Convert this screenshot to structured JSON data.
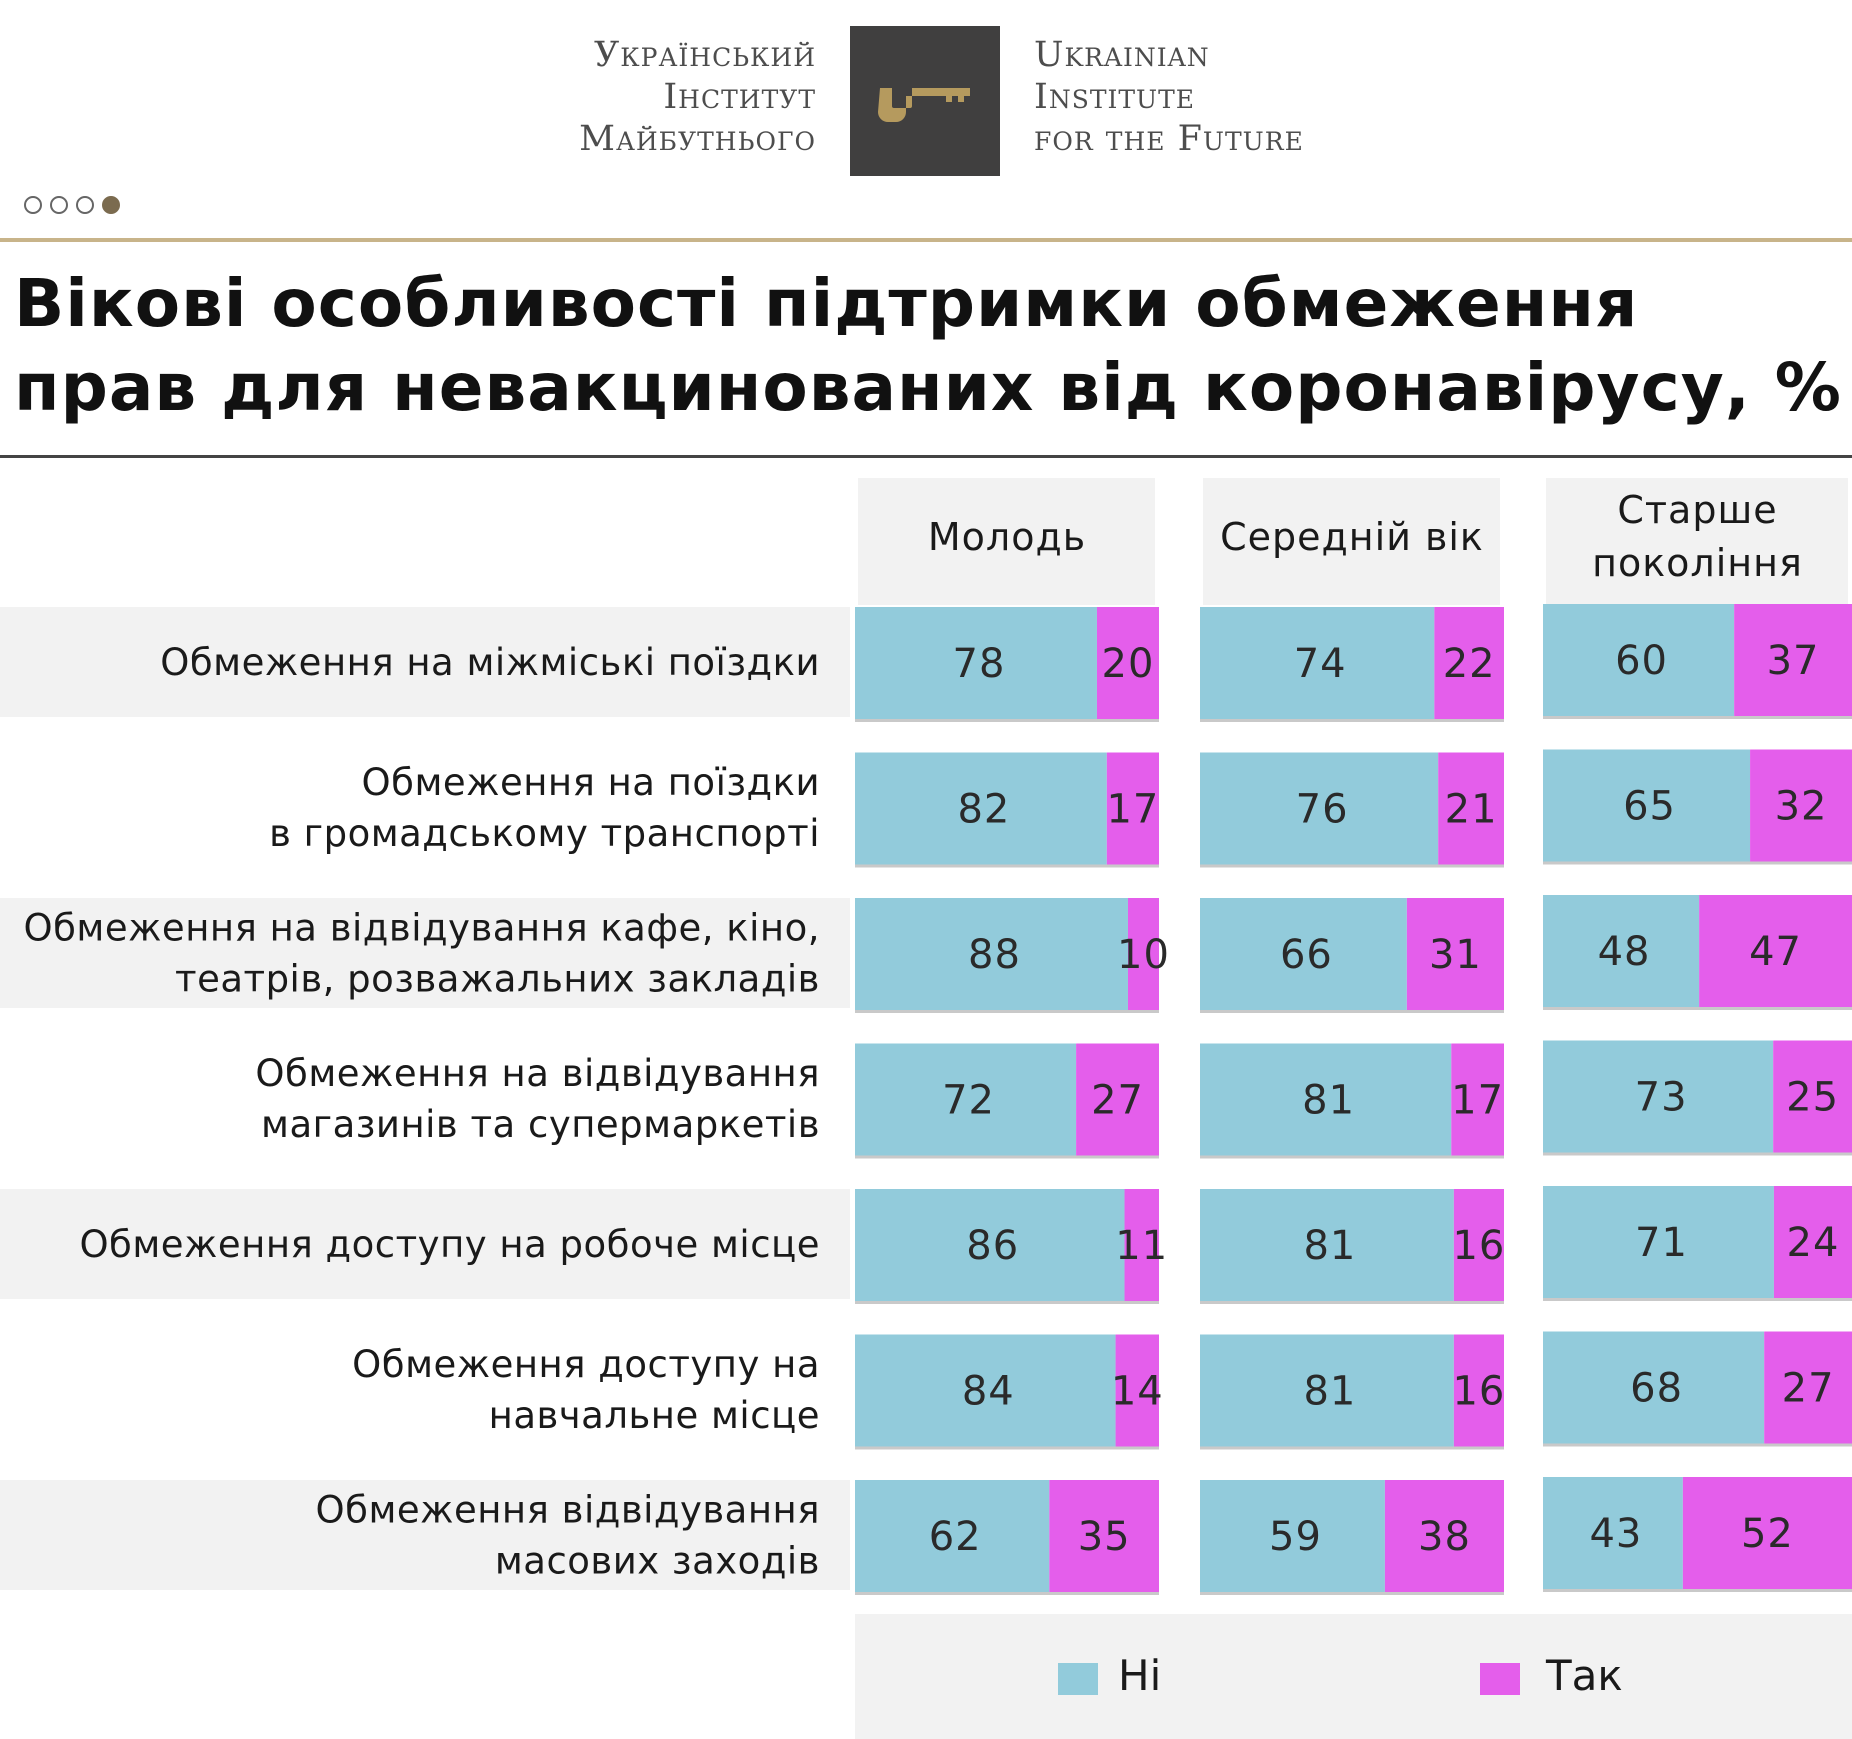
{
  "logo": {
    "ua_lines": [
      "Український",
      "Інститут",
      "Майбутнього"
    ],
    "en_lines": [
      "Ukrainian",
      "Institute",
      "for the Future"
    ],
    "box_color": "#403f3f",
    "key_color": "#b59a5e"
  },
  "title": "Вікові особливості підтримки обмеження прав для невакцинованих від коронавірусу, %",
  "colors": {
    "no": "#92cbdb",
    "yes": "#e45eeb",
    "stripe": "#f2f2f2",
    "header_bg": "#f2f2f2"
  },
  "chart_data": {
    "type": "bar",
    "orientation": "horizontal-stacked",
    "title": "Вікові особливості підтримки обмеження прав для невакцинованих від коронавірусу, %",
    "groups": [
      {
        "name": "Молодь",
        "name_lines": [
          "Молодь"
        ]
      },
      {
        "name": "Середній вік",
        "name_lines": [
          "Середній вік"
        ]
      },
      {
        "name": "Старше покоління",
        "name_lines": [
          "Старше",
          "покоління"
        ]
      }
    ],
    "categories": [
      [
        "Обмеження на міжміські поїздки"
      ],
      [
        "Обмеження на поїздки",
        "в громадському транспорті"
      ],
      [
        "Обмеження на відвідування кафе, кіно,",
        "театрів, розважальних закладів"
      ],
      [
        "Обмеження на відвідування",
        "магазинів та супермаркетів"
      ],
      [
        "Обмеження доступу на робоче місце"
      ],
      [
        "Обмеження доступу на",
        "навчальне місце"
      ],
      [
        "Обмеження відвідування",
        "масових заходів"
      ]
    ],
    "series": [
      {
        "name": "Ні",
        "values": [
          [
            78,
            74,
            60
          ],
          [
            82,
            76,
            65
          ],
          [
            88,
            66,
            48
          ],
          [
            72,
            81,
            73
          ],
          [
            86,
            81,
            71
          ],
          [
            84,
            81,
            68
          ],
          [
            62,
            59,
            43
          ]
        ]
      },
      {
        "name": "Так",
        "values": [
          [
            20,
            22,
            37
          ],
          [
            17,
            21,
            32
          ],
          [
            10,
            31,
            47
          ],
          [
            27,
            17,
            25
          ],
          [
            11,
            16,
            24
          ],
          [
            14,
            16,
            27
          ],
          [
            35,
            38,
            52
          ]
        ]
      }
    ],
    "legend": [
      {
        "label": "Ні",
        "key": "no"
      },
      {
        "label": "Так",
        "key": "yes"
      }
    ],
    "scale_max": 100
  }
}
